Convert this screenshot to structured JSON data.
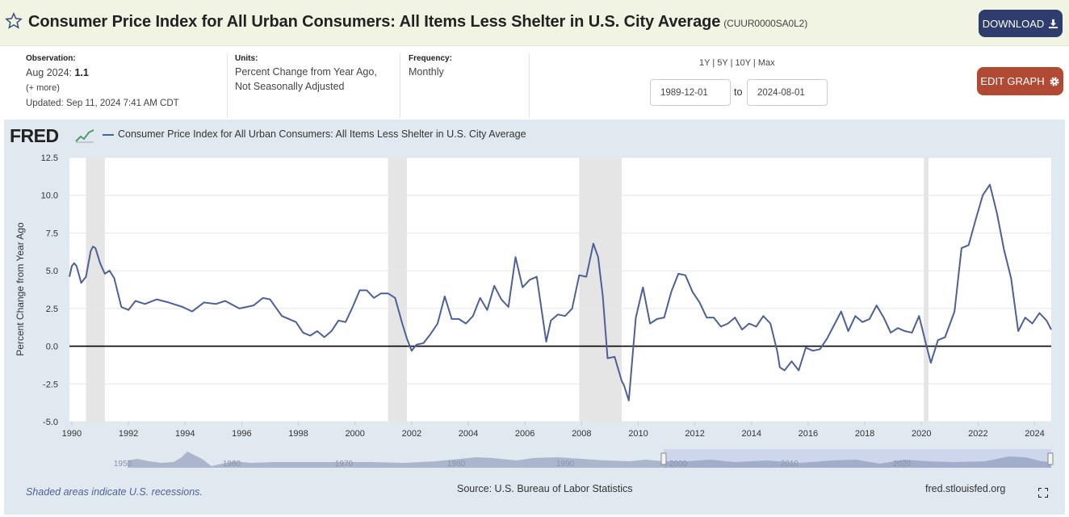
{
  "header": {
    "title": "Consumer Price Index for All Urban Consumers: All Items Less Shelter in U.S. City Average",
    "series_id": "(CUUR0000SA0L2)",
    "download_label": "DOWNLOAD",
    "star_icon": "star-icon",
    "download_icon": "download-icon"
  },
  "meta": {
    "observation_label": "Observation:",
    "observation_period": "Aug 2024:",
    "observation_value": "1.1",
    "more_link": "(+ more)",
    "updated": "Updated: Sep 11, 2024 7:41 AM CDT",
    "units_label": "Units:",
    "units_line1": "Percent Change from Year Ago,",
    "units_line2": "Not Seasonally Adjusted",
    "frequency_label": "Frequency:",
    "frequency_value": "Monthly"
  },
  "controls": {
    "ranges": [
      "1Y",
      "5Y",
      "10Y",
      "Max"
    ],
    "start_date": "1989-12-01",
    "to_label": "to",
    "end_date": "2024-08-01",
    "edit_label": "EDIT GRAPH",
    "gear_icon": "gear-icon"
  },
  "logo": "FRED",
  "footer": {
    "recession_note": "Shaded areas indicate U.S. recessions.",
    "source": "Source: U.S. Bureau of Labor Statistics",
    "site": "fred.stlouisfed.org"
  },
  "navigator": {
    "labels": [
      "1950",
      "1960",
      "1970",
      "1980",
      "1990",
      "2000",
      "2010",
      "2020"
    ]
  },
  "colors": {
    "series": "#4e6197",
    "recession": "#e5e5e5",
    "panel": "#e1e9f0",
    "download": "#2e3d6e",
    "edit": "#b04a35"
  },
  "chart_data": {
    "type": "line",
    "ylabel": "Percent Change from Year Ago",
    "yticks": [
      "12.5",
      "10.0",
      "7.5",
      "5.0",
      "2.5",
      "0.0",
      "-2.5",
      "-5.0"
    ],
    "ylim": [
      -5.0,
      12.5
    ],
    "xlim": [
      "1989-12-01",
      "2024-08-01"
    ],
    "xticks": [
      "1990",
      "1992",
      "1994",
      "1996",
      "1998",
      "2000",
      "2002",
      "2004",
      "2006",
      "2008",
      "2010",
      "2012",
      "2014",
      "2016",
      "2018",
      "2020",
      "2022",
      "2024"
    ],
    "legend": "top-left",
    "grid": "horizontal",
    "recessions": [
      [
        "1990-07-01",
        "1991-03-01"
      ],
      [
        "2001-03-01",
        "2001-11-01"
      ],
      [
        "2007-12-01",
        "2009-06-01"
      ],
      [
        "2020-02-01",
        "2020-04-01"
      ]
    ],
    "series": [
      {
        "name": "Consumer Price Index for All Urban Consumers: All Items Less Shelter in U.S. City Average",
        "points": [
          [
            "1989-12-01",
            4.6
          ],
          [
            "1990-01-01",
            5.3
          ],
          [
            "1990-02-01",
            5.5
          ],
          [
            "1990-03-01",
            5.3
          ],
          [
            "1990-05-01",
            4.2
          ],
          [
            "1990-07-01",
            4.6
          ],
          [
            "1990-09-01",
            6.3
          ],
          [
            "1990-10-01",
            6.6
          ],
          [
            "1990-11-01",
            6.5
          ],
          [
            "1991-01-01",
            5.5
          ],
          [
            "1991-03-01",
            4.8
          ],
          [
            "1991-05-01",
            5.0
          ],
          [
            "1991-07-01",
            4.5
          ],
          [
            "1991-10-01",
            2.6
          ],
          [
            "1992-01-01",
            2.4
          ],
          [
            "1992-04-01",
            3.0
          ],
          [
            "1992-08-01",
            2.8
          ],
          [
            "1993-01-01",
            3.1
          ],
          [
            "1993-06-01",
            2.9
          ],
          [
            "1993-12-01",
            2.6
          ],
          [
            "1994-04-01",
            2.3
          ],
          [
            "1994-09-01",
            2.9
          ],
          [
            "1995-02-01",
            2.8
          ],
          [
            "1995-06-01",
            3.0
          ],
          [
            "1995-12-01",
            2.5
          ],
          [
            "1996-06-01",
            2.7
          ],
          [
            "1996-10-01",
            3.2
          ],
          [
            "1997-01-01",
            3.1
          ],
          [
            "1997-06-01",
            2.0
          ],
          [
            "1997-12-01",
            1.6
          ],
          [
            "1998-03-01",
            0.9
          ],
          [
            "1998-06-01",
            0.7
          ],
          [
            "1998-09-01",
            1.0
          ],
          [
            "1998-12-01",
            0.6
          ],
          [
            "1999-03-01",
            1.0
          ],
          [
            "1999-06-01",
            1.7
          ],
          [
            "1999-09-01",
            1.6
          ],
          [
            "1999-12-01",
            2.6
          ],
          [
            "2000-03-01",
            3.7
          ],
          [
            "2000-06-01",
            3.7
          ],
          [
            "2000-09-01",
            3.2
          ],
          [
            "2000-12-01",
            3.5
          ],
          [
            "2001-03-01",
            3.5
          ],
          [
            "2001-06-01",
            3.2
          ],
          [
            "2001-09-01",
            1.5
          ],
          [
            "2001-11-01",
            0.5
          ],
          [
            "2002-01-01",
            -0.3
          ],
          [
            "2002-03-01",
            0.1
          ],
          [
            "2002-06-01",
            0.2
          ],
          [
            "2002-09-01",
            0.8
          ],
          [
            "2002-12-01",
            1.5
          ],
          [
            "2003-03-01",
            3.3
          ],
          [
            "2003-06-01",
            1.8
          ],
          [
            "2003-09-01",
            1.8
          ],
          [
            "2003-12-01",
            1.5
          ],
          [
            "2004-03-01",
            2.0
          ],
          [
            "2004-06-01",
            3.2
          ],
          [
            "2004-09-01",
            2.4
          ],
          [
            "2004-12-01",
            4.0
          ],
          [
            "2005-03-01",
            3.1
          ],
          [
            "2005-06-01",
            2.6
          ],
          [
            "2005-09-01",
            5.9
          ],
          [
            "2005-12-01",
            3.9
          ],
          [
            "2006-03-01",
            4.4
          ],
          [
            "2006-06-01",
            4.6
          ],
          [
            "2006-09-01",
            1.4
          ],
          [
            "2006-10-01",
            0.3
          ],
          [
            "2006-12-01",
            1.7
          ],
          [
            "2007-03-01",
            2.1
          ],
          [
            "2007-06-01",
            2.0
          ],
          [
            "2007-09-01",
            2.5
          ],
          [
            "2007-12-01",
            4.7
          ],
          [
            "2008-03-01",
            4.6
          ],
          [
            "2008-06-01",
            6.8
          ],
          [
            "2008-08-01",
            5.9
          ],
          [
            "2008-10-01",
            3.3
          ],
          [
            "2008-12-01",
            -0.8
          ],
          [
            "2009-03-01",
            -0.7
          ],
          [
            "2009-06-01",
            -2.3
          ],
          [
            "2009-07-01",
            -2.6
          ],
          [
            "2009-09-01",
            -3.6
          ],
          [
            "2009-12-01",
            1.9
          ],
          [
            "2010-03-01",
            3.9
          ],
          [
            "2010-06-01",
            1.5
          ],
          [
            "2010-09-01",
            1.8
          ],
          [
            "2010-12-01",
            1.9
          ],
          [
            "2011-03-01",
            3.6
          ],
          [
            "2011-06-01",
            4.8
          ],
          [
            "2011-09-01",
            4.7
          ],
          [
            "2011-12-01",
            3.6
          ],
          [
            "2012-03-01",
            2.9
          ],
          [
            "2012-06-01",
            1.9
          ],
          [
            "2012-09-01",
            1.9
          ],
          [
            "2012-12-01",
            1.3
          ],
          [
            "2013-03-01",
            1.5
          ],
          [
            "2013-06-01",
            1.9
          ],
          [
            "2013-09-01",
            1.1
          ],
          [
            "2013-12-01",
            1.5
          ],
          [
            "2014-03-01",
            1.3
          ],
          [
            "2014-06-01",
            2.0
          ],
          [
            "2014-09-01",
            1.5
          ],
          [
            "2014-12-01",
            -0.4
          ],
          [
            "2015-01-01",
            -1.4
          ],
          [
            "2015-03-01",
            -1.6
          ],
          [
            "2015-06-01",
            -1.0
          ],
          [
            "2015-09-01",
            -1.6
          ],
          [
            "2015-12-01",
            -0.1
          ],
          [
            "2016-03-01",
            -0.3
          ],
          [
            "2016-06-01",
            -0.2
          ],
          [
            "2016-09-01",
            0.5
          ],
          [
            "2016-12-01",
            1.4
          ],
          [
            "2017-03-01",
            2.3
          ],
          [
            "2017-06-01",
            1.0
          ],
          [
            "2017-09-01",
            2.0
          ],
          [
            "2017-12-01",
            1.6
          ],
          [
            "2018-03-01",
            1.8
          ],
          [
            "2018-06-01",
            2.7
          ],
          [
            "2018-09-01",
            1.9
          ],
          [
            "2018-12-01",
            0.9
          ],
          [
            "2019-03-01",
            1.2
          ],
          [
            "2019-06-01",
            1.0
          ],
          [
            "2019-09-01",
            0.9
          ],
          [
            "2019-12-01",
            2.0
          ],
          [
            "2020-03-01",
            0.1
          ],
          [
            "2020-05-01",
            -1.1
          ],
          [
            "2020-08-01",
            0.4
          ],
          [
            "2020-11-01",
            0.6
          ],
          [
            "2021-03-01",
            2.3
          ],
          [
            "2021-06-01",
            6.5
          ],
          [
            "2021-09-01",
            6.7
          ],
          [
            "2021-12-01",
            8.4
          ],
          [
            "2022-03-01",
            10.0
          ],
          [
            "2022-06-01",
            10.7
          ],
          [
            "2022-09-01",
            8.8
          ],
          [
            "2022-12-01",
            6.4
          ],
          [
            "2023-03-01",
            4.5
          ],
          [
            "2023-06-01",
            1.0
          ],
          [
            "2023-09-01",
            1.9
          ],
          [
            "2023-12-01",
            1.5
          ],
          [
            "2024-03-01",
            2.2
          ],
          [
            "2024-06-01",
            1.7
          ],
          [
            "2024-08-01",
            1.1
          ]
        ]
      }
    ]
  }
}
